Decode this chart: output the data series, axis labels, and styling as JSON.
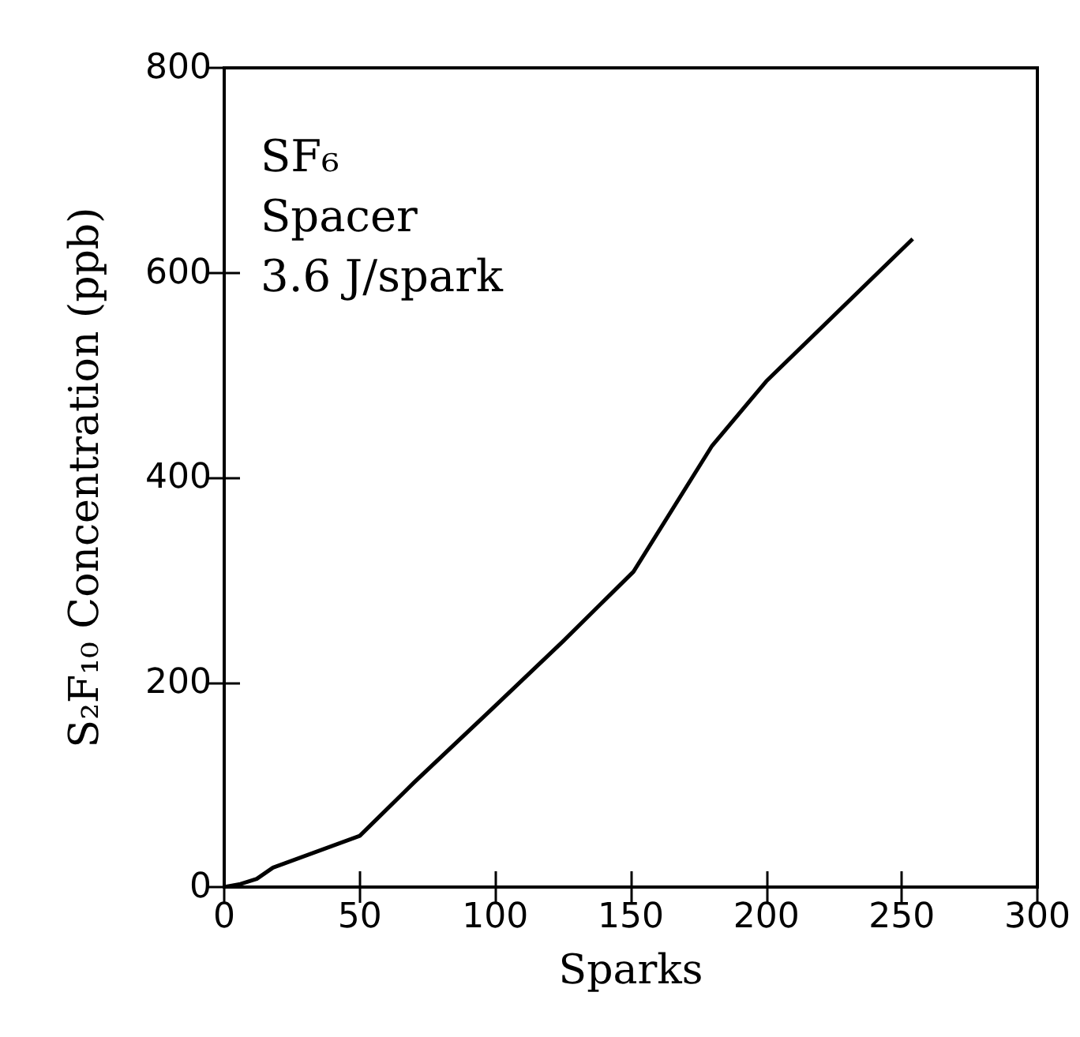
{
  "chart_data": {
    "type": "line",
    "xlabel": "Sparks",
    "ylabel": "S₂F₁₀ Concentration (ppb)",
    "annotations": [
      "SF₆",
      "Spacer",
      "3.6 J/spark"
    ],
    "x": [
      0,
      6,
      12,
      18,
      50,
      70,
      98,
      125,
      151,
      180,
      200,
      254
    ],
    "values": [
      0,
      3,
      8,
      19,
      50,
      102,
      172,
      240,
      308,
      431,
      494,
      633
    ],
    "color": "#000000",
    "xlim": [
      0,
      300
    ],
    "xticks": [
      0,
      50,
      100,
      150,
      200,
      250,
      300
    ],
    "ylim": [
      0,
      800
    ],
    "yticks": [
      0,
      200,
      400,
      600,
      800
    ],
    "grid": false,
    "marker": "none",
    "line_style": "solid"
  }
}
